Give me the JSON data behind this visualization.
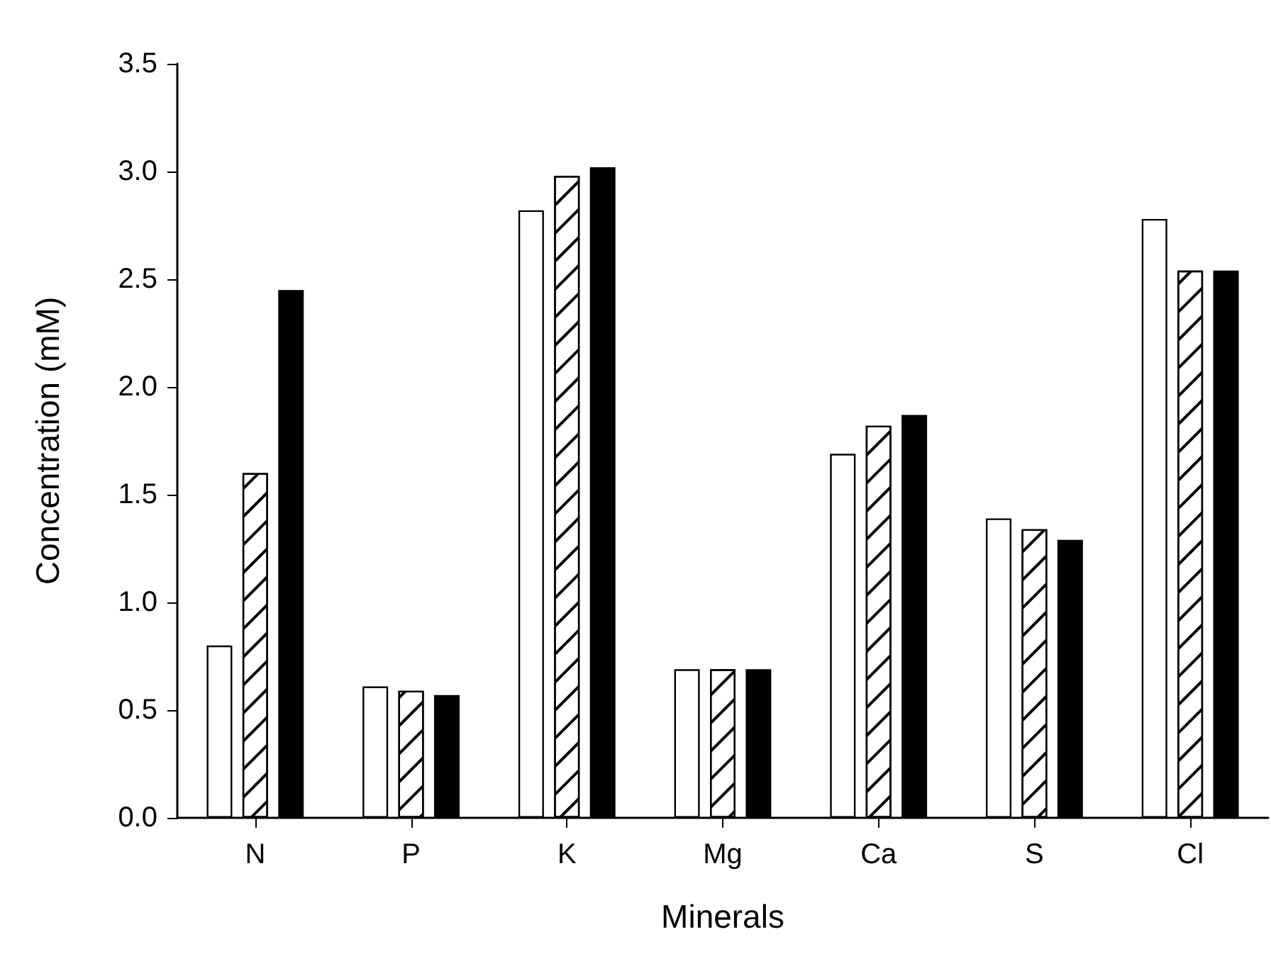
{
  "chart_data": {
    "type": "bar",
    "xlabel": "Minerals",
    "ylabel": "Concentration (mM)",
    "categories": [
      "N",
      "P",
      "K",
      "Mg",
      "Ca",
      "S",
      "Cl"
    ],
    "series": [
      {
        "color": "#ffffff",
        "values": [
          0.8,
          0.61,
          2.82,
          0.69,
          1.69,
          1.39,
          2.78
        ]
      },
      {
        "color": "#ffffff",
        "values": [
          1.6,
          0.59,
          2.98,
          0.69,
          1.82,
          1.34,
          2.54
        ]
      },
      {
        "color": "#000000",
        "values": [
          2.45,
          0.57,
          3.02,
          0.69,
          1.87,
          1.29,
          2.54
        ]
      }
    ],
    "ylim": [
      0,
      3.5
    ],
    "yticks": [
      {
        "value": 0,
        "label": "0.0"
      },
      {
        "value": 0.5,
        "label": "0.5"
      },
      {
        "value": 1,
        "label": "1.0"
      },
      {
        "value": 1.5,
        "label": "1.5"
      },
      {
        "value": 2,
        "label": "2.0"
      },
      {
        "value": 2.5,
        "label": "2.5"
      },
      {
        "value": 3,
        "label": "3.0"
      },
      {
        "value": 3.5,
        "label": "3.5"
      }
    ],
    "grid": false
  }
}
